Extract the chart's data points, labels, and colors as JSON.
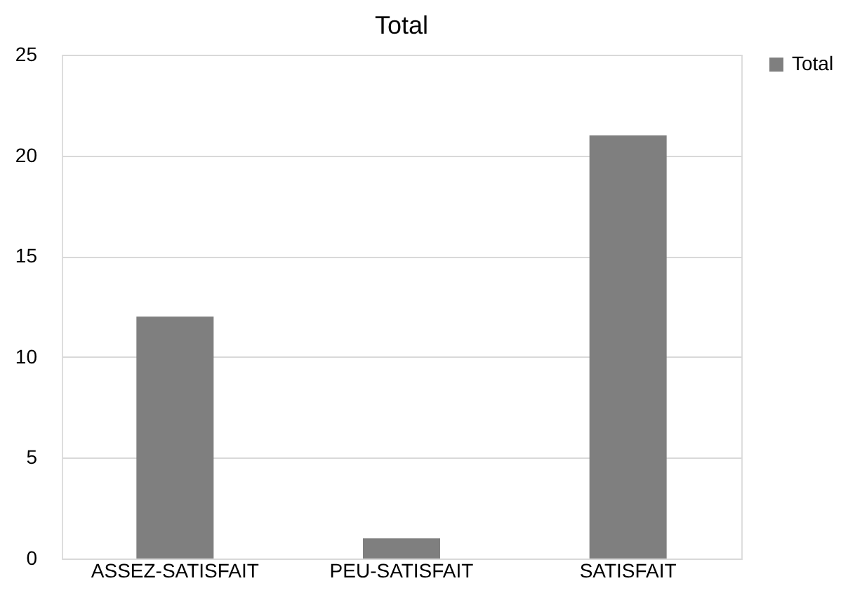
{
  "chart_data": {
    "type": "bar",
    "title": "Total",
    "categories": [
      "ASSEZ-SATISFAIT",
      "PEU-SATISFAIT",
      "SATISFAIT"
    ],
    "series": [
      {
        "name": "Total",
        "color": "#7f7f7f",
        "values": [
          12,
          1,
          21
        ]
      }
    ],
    "ylim": [
      0,
      25
    ],
    "yticks": [
      0,
      5,
      10,
      15,
      20,
      25
    ],
    "grid": "y",
    "legend": "right"
  }
}
